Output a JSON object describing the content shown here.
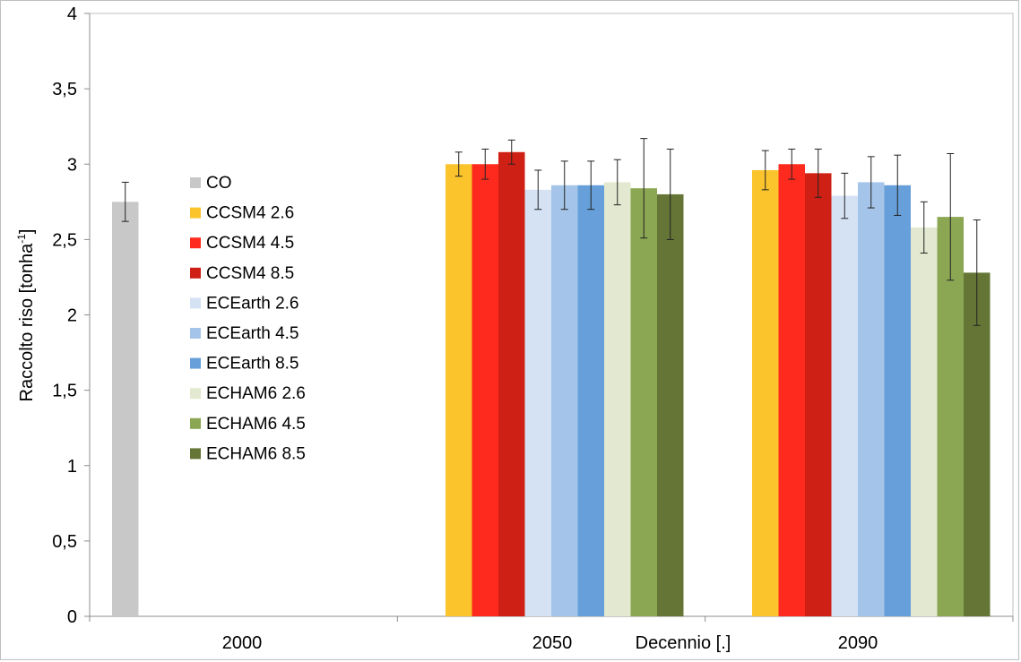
{
  "chart_data": {
    "type": "bar",
    "ylabel": "Raccolto riso [tonha-1]",
    "ylabel_main": "Raccolto riso [tonha",
    "ylabel_sup": "-1",
    "ylabel_end": "]",
    "xlabel": "Decennio [.]",
    "ylim": [
      0,
      4
    ],
    "yticks": [
      "0",
      "0,5",
      "1",
      "1,5",
      "2",
      "2,5",
      "3",
      "3,5",
      "4"
    ],
    "categories": [
      "2000",
      "2050",
      "2090"
    ],
    "legend_position": "left",
    "series": [
      {
        "name": "CO",
        "color": "#c8c8c8",
        "values": [
          2.75,
          null,
          null
        ],
        "errors": [
          0.13,
          null,
          null
        ]
      },
      {
        "name": "CCSM4 2.6",
        "color": "#fbc42c",
        "values": [
          null,
          3.0,
          2.96
        ],
        "errors": [
          null,
          0.08,
          0.13
        ]
      },
      {
        "name": "CCSM4 4.5",
        "color": "#fe2a1e",
        "values": [
          null,
          3.0,
          3.0
        ],
        "errors": [
          null,
          0.1,
          0.1
        ]
      },
      {
        "name": "CCSM4 8.5",
        "color": "#cf2015",
        "values": [
          null,
          3.08,
          2.94
        ],
        "errors": [
          null,
          0.08,
          0.16
        ]
      },
      {
        "name": "ECEarth 2.6",
        "color": "#d4e2f4",
        "values": [
          null,
          2.83,
          2.79
        ],
        "errors": [
          null,
          0.13,
          0.15
        ]
      },
      {
        "name": "ECEarth 4.5",
        "color": "#a4c5e9",
        "values": [
          null,
          2.86,
          2.88
        ],
        "errors": [
          null,
          0.16,
          0.17
        ]
      },
      {
        "name": "ECEarth 8.5",
        "color": "#669fd9",
        "values": [
          null,
          2.86,
          2.86
        ],
        "errors": [
          null,
          0.16,
          0.2
        ]
      },
      {
        "name": "ECHAM6 2.6",
        "color": "#e2e9d0",
        "values": [
          null,
          2.88,
          2.58
        ],
        "errors": [
          null,
          0.15,
          0.17
        ]
      },
      {
        "name": "ECHAM6 4.5",
        "color": "#8ba753",
        "values": [
          null,
          2.84,
          2.65
        ],
        "errors": [
          null,
          0.33,
          0.42
        ]
      },
      {
        "name": "ECHAM6 8.5",
        "color": "#647536",
        "values": [
          null,
          2.8,
          2.28
        ],
        "errors": [
          null,
          0.3,
          0.35
        ]
      }
    ]
  }
}
